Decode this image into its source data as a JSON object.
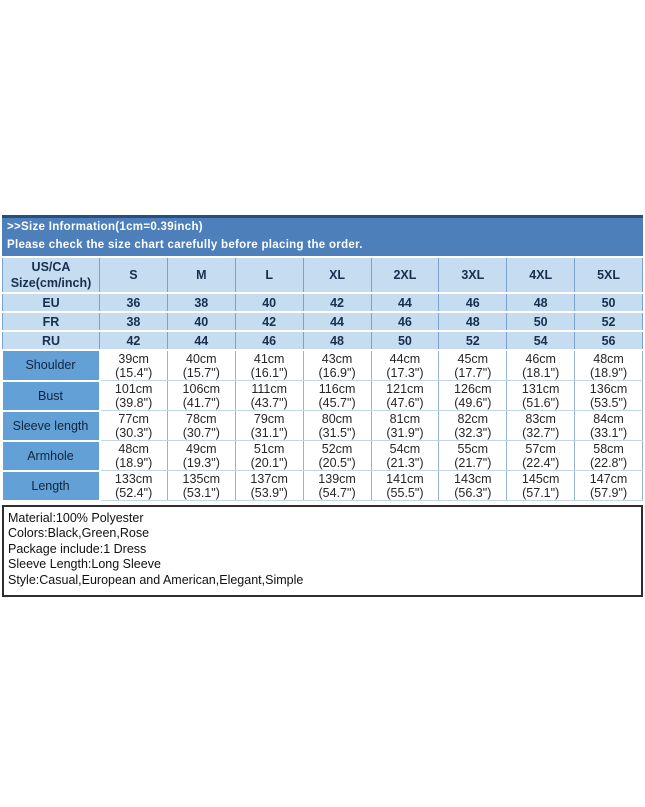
{
  "banner": {
    "title": ">>Size Information(1cm=0.39inch)",
    "subtitle": "Please check the size chart carefully before placing the order."
  },
  "size_table": {
    "corner_line1": "US/CA",
    "corner_line2": "Size(cm/inch)",
    "size_labels": [
      "S",
      "M",
      "L",
      "XL",
      "2XL",
      "3XL",
      "4XL",
      "5XL"
    ],
    "region_rows": [
      {
        "label": "EU",
        "values": [
          "36",
          "38",
          "40",
          "42",
          "44",
          "46",
          "48",
          "50"
        ]
      },
      {
        "label": "FR",
        "values": [
          "38",
          "40",
          "42",
          "44",
          "46",
          "48",
          "50",
          "52"
        ]
      },
      {
        "label": "RU",
        "values": [
          "42",
          "44",
          "46",
          "48",
          "50",
          "52",
          "54",
          "56"
        ]
      }
    ],
    "measurement_rows": [
      {
        "label": "Shoulder",
        "values_cm": [
          "39cm",
          "40cm",
          "41cm",
          "43cm",
          "44cm",
          "45cm",
          "46cm",
          "48cm"
        ],
        "values_in": [
          "(15.4\")",
          "(15.7\")",
          "(16.1\")",
          "(16.9\")",
          "(17.3\")",
          "(17.7\")",
          "(18.1\")",
          "(18.9\")"
        ]
      },
      {
        "label": "Bust",
        "values_cm": [
          "101cm",
          "106cm",
          "111cm",
          "116cm",
          "121cm",
          "126cm",
          "131cm",
          "136cm"
        ],
        "values_in": [
          "(39.8\")",
          "(41.7\")",
          "(43.7\")",
          "(45.7\")",
          "(47.6\")",
          "(49.6\")",
          "(51.6\")",
          "(53.5\")"
        ]
      },
      {
        "label": "Sleeve length",
        "values_cm": [
          "77cm",
          "78cm",
          "79cm",
          "80cm",
          "81cm",
          "82cm",
          "83cm",
          "84cm"
        ],
        "values_in": [
          "(30.3\")",
          "(30.7\")",
          "(31.1\")",
          "(31.5\")",
          "(31.9\")",
          "(32.3\")",
          "(32.7\")",
          "(33.1\")"
        ]
      },
      {
        "label": "Armhole",
        "values_cm": [
          "48cm",
          "49cm",
          "51cm",
          "52cm",
          "54cm",
          "55cm",
          "57cm",
          "58cm"
        ],
        "values_in": [
          "(18.9\")",
          "(19.3\")",
          "(20.1\")",
          "(20.5\")",
          "(21.3\")",
          "(21.7\")",
          "(22.4\")",
          "(22.8\")"
        ]
      },
      {
        "label": "Length",
        "values_cm": [
          "133cm",
          "135cm",
          "137cm",
          "139cm",
          "141cm",
          "143cm",
          "145cm",
          "147cm"
        ],
        "values_in": [
          "(52.4\")",
          "(53.1\")",
          "(53.9\")",
          "(54.7\")",
          "(55.5\")",
          "(56.3\")",
          "(57.1\")",
          "(57.9\")"
        ]
      }
    ]
  },
  "details": {
    "lines": [
      "Material:100% Polyester",
      "Colors:Black,Green,Rose",
      "Package include:1 Dress",
      "Sleeve Length:Long Sleeve",
      "Style:Casual,European and American,Elegant,Simple"
    ]
  },
  "colors": {
    "banner_bg": "#4d7fba",
    "banner_top_border": "#24507f",
    "header_cell_bg": "#c6dcf1",
    "measurement_label_bg": "#63a0d6",
    "grid_line": "#7ba2cc"
  }
}
